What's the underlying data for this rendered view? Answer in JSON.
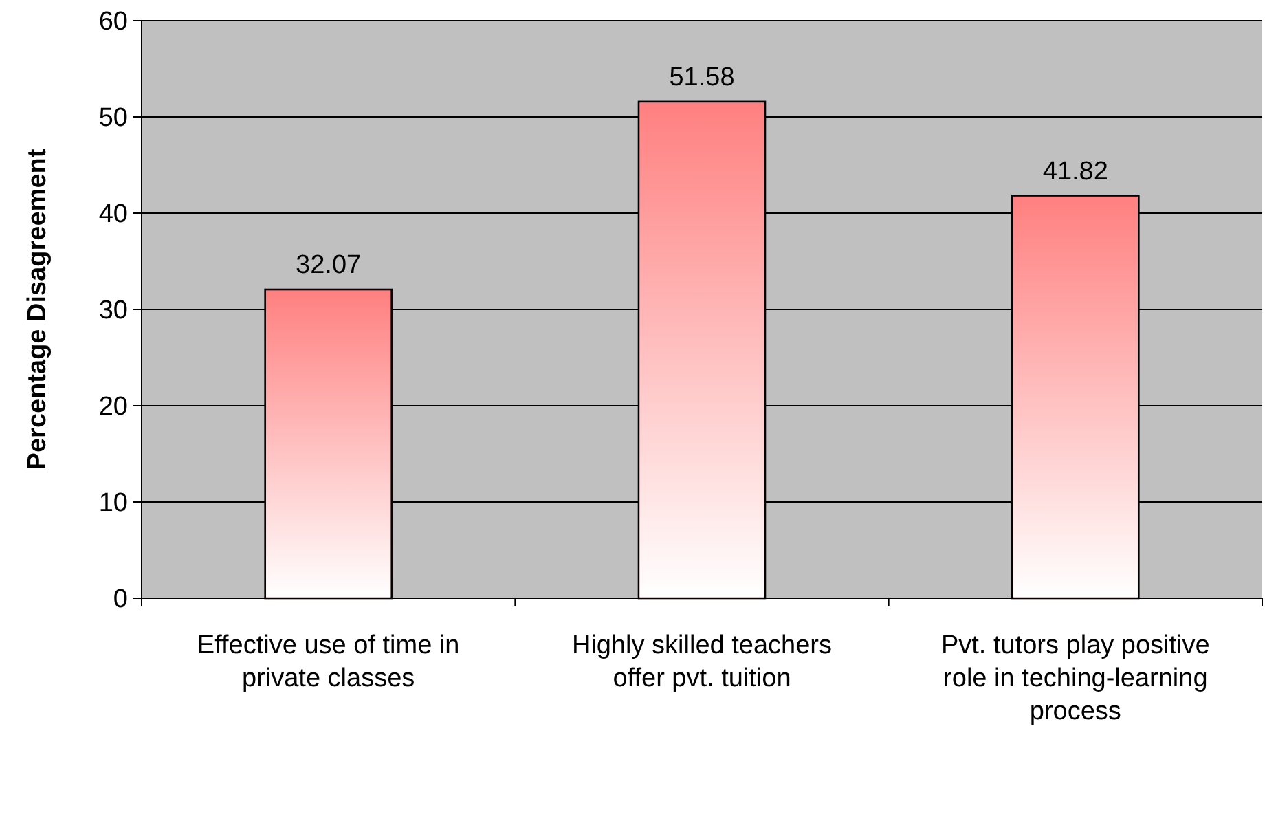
{
  "chart_data": {
    "type": "bar",
    "ylabel": "Percentage Disagreement",
    "categories": [
      "Effective use of time in private classes",
      "Highly skilled teachers offer pvt. tuition",
      "Pvt. tutors play positive role in teching-learning process"
    ],
    "values": [
      32.07,
      51.58,
      41.82
    ],
    "color": "#ff8080",
    "ylim": [
      0,
      60
    ],
    "yticks": [
      0,
      10,
      20,
      30,
      40,
      50,
      60
    ],
    "grid": "y",
    "data_labels": true
  }
}
